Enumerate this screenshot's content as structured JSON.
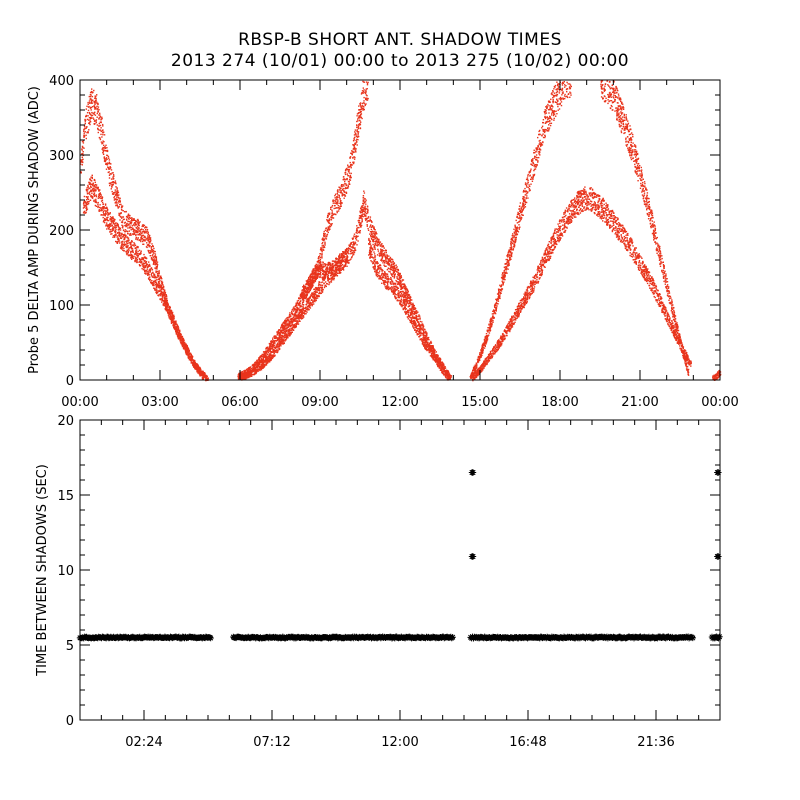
{
  "title": "RBSP-B SHORT ANT. SHADOW TIMES",
  "subtitle": "2013 274 (10/01) 00:00 to 2013 275 (10/02) 00:00",
  "colors": {
    "top_points": "#e8341c",
    "bottom_points": "#000000",
    "axes": "#000000"
  },
  "chart_data": [
    {
      "type": "scatter",
      "title": "",
      "xlabel": "",
      "ylabel": "Probe 5 DELTA AMP DURING SHADOW (ADC)",
      "x_units": "hours",
      "xlim": [
        0,
        24
      ],
      "ylim": [
        0,
        400
      ],
      "yticks": [
        0,
        100,
        200,
        300,
        400
      ],
      "xtick_labels": [
        "00:00",
        "03:00",
        "06:00",
        "09:00",
        "12:00",
        "15:00",
        "18:00",
        "21:00",
        "00:00"
      ],
      "grid": false,
      "series": [
        {
          "x": [
            0.0,
            0.2,
            0.4,
            0.6,
            0.8,
            1.0,
            1.3,
            1.6,
            1.9,
            2.2,
            2.5,
            2.8,
            3.0,
            3.3,
            3.6,
            3.9,
            4.2,
            4.5,
            4.8
          ],
          "y": [
            290,
            340,
            370,
            360,
            330,
            290,
            250,
            215,
            205,
            200,
            190,
            160,
            130,
            95,
            70,
            45,
            25,
            12,
            0
          ]
        },
        {
          "x": [
            0.1,
            0.4,
            0.7,
            1.0,
            1.3,
            1.6,
            1.9,
            2.2,
            2.5,
            2.8,
            3.1,
            3.4,
            3.7,
            4.0,
            4.3,
            4.6
          ],
          "y": [
            230,
            260,
            240,
            215,
            200,
            185,
            175,
            165,
            150,
            130,
            110,
            85,
            60,
            40,
            20,
            5
          ]
        },
        {
          "x": [
            5.9,
            6.2,
            6.5,
            6.8,
            7.1,
            7.4,
            7.7,
            8.0,
            8.3,
            8.6,
            8.9,
            9.2,
            9.5,
            9.8,
            10.1,
            10.4,
            10.6,
            10.8
          ],
          "y": [
            5,
            10,
            18,
            30,
            45,
            60,
            75,
            90,
            110,
            130,
            150,
            200,
            230,
            250,
            280,
            340,
            380,
            400
          ]
        },
        {
          "x": [
            6.0,
            6.4,
            6.8,
            7.2,
            7.6,
            8.0,
            8.4,
            8.8,
            9.2,
            9.6,
            10.0,
            10.3,
            10.6
          ],
          "y": [
            3,
            10,
            20,
            35,
            55,
            75,
            95,
            115,
            135,
            150,
            165,
            185,
            230
          ]
        },
        {
          "x": [
            8.3,
            8.6,
            8.9,
            9.2,
            9.5,
            9.8,
            10.0
          ],
          "y": [
            115,
            130,
            150,
            145,
            150,
            160,
            165
          ]
        },
        {
          "x": [
            10.6,
            10.9,
            11.2,
            11.5,
            11.8,
            12.1,
            12.4,
            12.7,
            13.0,
            13.3,
            13.6,
            13.9
          ],
          "y": [
            240,
            200,
            175,
            160,
            145,
            125,
            100,
            80,
            55,
            35,
            18,
            2
          ]
        },
        {
          "x": [
            10.8,
            11.1,
            11.4,
            11.7,
            12.0,
            12.3,
            12.6,
            12.9,
            13.2,
            13.5,
            13.8
          ],
          "y": [
            180,
            150,
            135,
            125,
            110,
            90,
            70,
            50,
            35,
            18,
            3
          ]
        },
        {
          "x": [
            14.6,
            14.9,
            15.2,
            15.5,
            15.8,
            16.1,
            16.4,
            16.7,
            17.0,
            17.3,
            17.6,
            17.9,
            18.2,
            18.4
          ],
          "y": [
            3,
            25,
            55,
            90,
            130,
            170,
            210,
            250,
            290,
            330,
            360,
            380,
            400,
            400
          ]
        },
        {
          "x": [
            14.7,
            15.0,
            15.4,
            15.8,
            16.2,
            16.6,
            17.0,
            17.4,
            17.8,
            18.2,
            18.6,
            19.0,
            19.4,
            19.8,
            20.2,
            20.6,
            21.0,
            21.4,
            21.8,
            22.2,
            22.6,
            22.9
          ],
          "y": [
            3,
            15,
            35,
            55,
            80,
            105,
            130,
            160,
            190,
            215,
            235,
            245,
            235,
            220,
            200,
            180,
            155,
            130,
            100,
            70,
            40,
            20
          ]
        },
        {
          "x": [
            19.5,
            19.8,
            20.1,
            20.4,
            20.7,
            21.0,
            21.3,
            21.6,
            21.9,
            22.2,
            22.5,
            22.8
          ],
          "y": [
            400,
            390,
            370,
            340,
            310,
            270,
            230,
            185,
            140,
            95,
            50,
            10
          ]
        },
        {
          "x": [
            23.7,
            23.85,
            24.0
          ],
          "y": [
            2,
            6,
            12
          ]
        }
      ]
    },
    {
      "type": "scatter",
      "title": "",
      "xlabel": "",
      "ylabel": "TIME BETWEEN SHADOWS (SEC)",
      "x_units": "hours",
      "xlim": [
        0,
        24
      ],
      "ylim": [
        0,
        20
      ],
      "yticks": [
        0,
        5,
        10,
        15,
        20
      ],
      "xtick_labels": [
        "02:24",
        "07:12",
        "12:00",
        "16:48",
        "21:36"
      ],
      "grid": false,
      "series": [
        {
          "segments": [
            [
              0.0,
              4.9
            ],
            [
              5.75,
              14.0
            ],
            [
              14.65,
              23.0
            ],
            [
              23.7,
              24.0
            ]
          ],
          "value": 5.5
        },
        {
          "x": [
            14.7,
            23.9
          ],
          "y": [
            16.5,
            16.5
          ]
        },
        {
          "x": [
            14.7,
            23.9
          ],
          "y": [
            10.9,
            10.9
          ]
        }
      ]
    }
  ]
}
